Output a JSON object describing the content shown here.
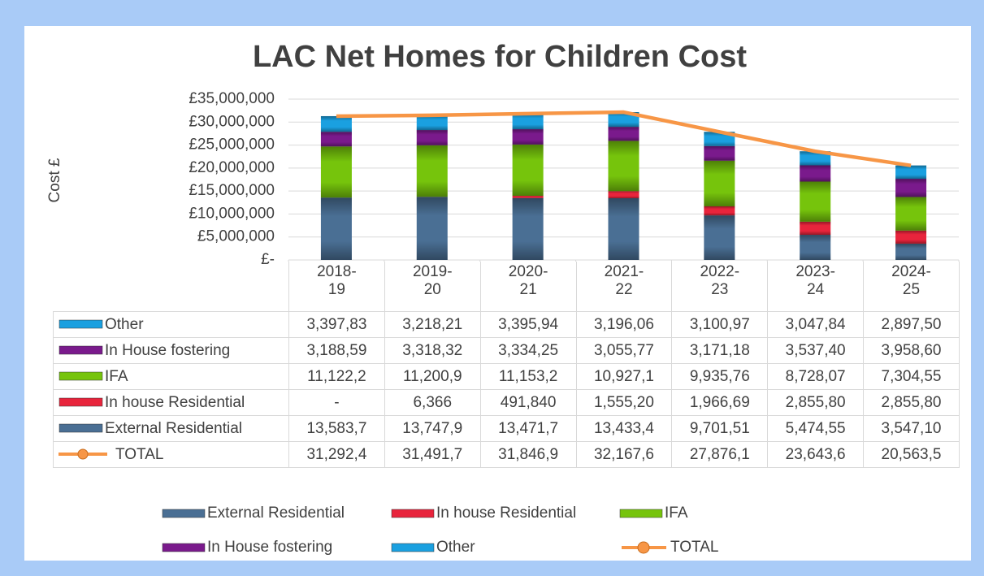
{
  "chart_data": {
    "type": "bar",
    "stacked": true,
    "title": "LAC Net Homes for Children Cost",
    "y_label": "Cost £",
    "categories": [
      "2018-19",
      "2019-20",
      "2020-21",
      "2021-22",
      "2022-23",
      "2023-24",
      "2024-25"
    ],
    "ylim": [
      0,
      35000000
    ],
    "yticks": [
      {
        "value": 0,
        "label": "£-"
      },
      {
        "value": 5000000,
        "label": "£5,000,000"
      },
      {
        "value": 10000000,
        "label": "£10,000,000"
      },
      {
        "value": 15000000,
        "label": "£15,000,000"
      },
      {
        "value": 20000000,
        "label": "£20,000,000"
      },
      {
        "value": 25000000,
        "label": "£25,000,000"
      },
      {
        "value": 30000000,
        "label": "£30,000,000"
      },
      {
        "value": 35000000,
        "label": "£35,000,000"
      }
    ],
    "grid": true,
    "legend": "bottom",
    "series": [
      {
        "name": "External Residential",
        "color": "#4a6f94",
        "values": [
          13583700,
          13747900,
          13471700,
          13433400,
          9701510,
          5474550,
          3547100
        ],
        "value_labels": [
          "13,583,7",
          "13,747,9",
          "13,471,7",
          "13,433,4",
          "9,701,51",
          "5,474,55",
          "3,547,10"
        ]
      },
      {
        "name": "In house Residential",
        "color": "#e8243c",
        "values": [
          0,
          6366,
          491840,
          1555200,
          1966690,
          2855800,
          2855800
        ],
        "value_labels": [
          "-",
          "6,366",
          "491,840",
          "1,555,20",
          "1,966,69",
          "2,855,80",
          "2,855,80"
        ]
      },
      {
        "name": "IFA",
        "color": "#76c40c",
        "values": [
          11122200,
          11200900,
          11153200,
          10927100,
          9935760,
          8728070,
          7304550
        ],
        "value_labels": [
          "11,122,2",
          "11,200,9",
          "11,153,2",
          "10,927,1",
          "9,935,76",
          "8,728,07",
          "7,304,55"
        ]
      },
      {
        "name": "In House fostering",
        "color": "#7a1a8c",
        "values": [
          3188590,
          3318320,
          3334250,
          3055770,
          3171180,
          3537400,
          3958600
        ],
        "value_labels": [
          "3,188,59",
          "3,318,32",
          "3,334,25",
          "3,055,77",
          "3,171,18",
          "3,537,40",
          "3,958,60"
        ]
      },
      {
        "name": "Other",
        "color": "#1aa0e0",
        "values": [
          3397830,
          3218210,
          3395940,
          3196060,
          3100970,
          3047840,
          2897500
        ],
        "value_labels": [
          "3,397,83",
          "3,218,21",
          "3,395,94",
          "3,196,06",
          "3,100,97",
          "3,047,84",
          "2,897,50"
        ]
      },
      {
        "name": "TOTAL",
        "color": "#f79646",
        "type": "line",
        "values": [
          31292400,
          31491700,
          31846900,
          32167600,
          27876100,
          23643600,
          20563500
        ],
        "value_labels": [
          "31,292,4",
          "31,491,7",
          "31,846,9",
          "32,167,6",
          "27,876,1",
          "23,643,6",
          "20,563,5"
        ]
      }
    ]
  }
}
